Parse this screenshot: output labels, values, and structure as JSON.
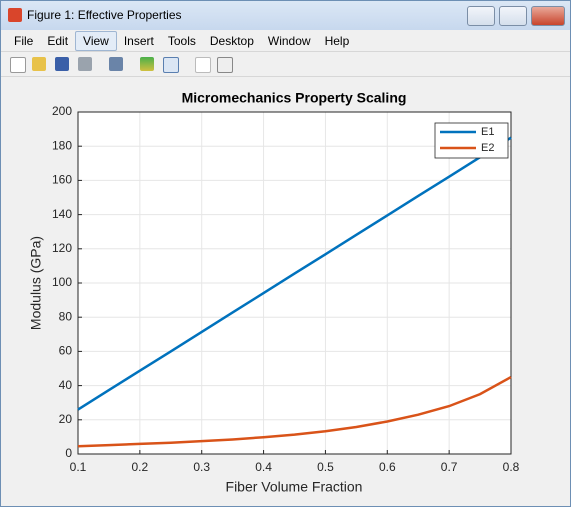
{
  "window": {
    "title": "Figure 1: Effective Properties",
    "menu": [
      "File",
      "Edit",
      "View",
      "Insert",
      "Tools",
      "Desktop",
      "Window",
      "Help"
    ]
  },
  "chart_data": {
    "type": "line",
    "title": "Micromechanics Property Scaling",
    "x_label": "Fiber Volume Fraction",
    "y_label": "Modulus (GPa)",
    "x": [
      0.1,
      0.15,
      0.2,
      0.25,
      0.3,
      0.35,
      0.4,
      0.45,
      0.5,
      0.55,
      0.6,
      0.65,
      0.7,
      0.75,
      0.8
    ],
    "series": [
      {
        "name": "E1",
        "color": "#0072bd",
        "values": [
          26,
          37.4,
          48.7,
          60,
          71.4,
          82.8,
          94.1,
          105.5,
          116.8,
          128.2,
          139.5,
          150.9,
          162.2,
          173.6,
          185
        ]
      },
      {
        "name": "E2",
        "color": "#d95319",
        "values": [
          4.5,
          5.2,
          5.9,
          6.6,
          7.5,
          8.5,
          9.8,
          11.3,
          13.3,
          15.8,
          19,
          23,
          28,
          35,
          45
        ]
      }
    ],
    "xlim": [
      0.1,
      0.8
    ],
    "xticks": [
      0.1,
      0.2,
      0.3,
      0.4,
      0.5,
      0.6,
      0.7,
      0.8
    ],
    "ylim": [
      0,
      200
    ],
    "yticks": [
      0,
      20,
      40,
      60,
      80,
      100,
      120,
      140,
      160,
      180,
      200
    ],
    "grid": true,
    "legend": "northeast"
  }
}
